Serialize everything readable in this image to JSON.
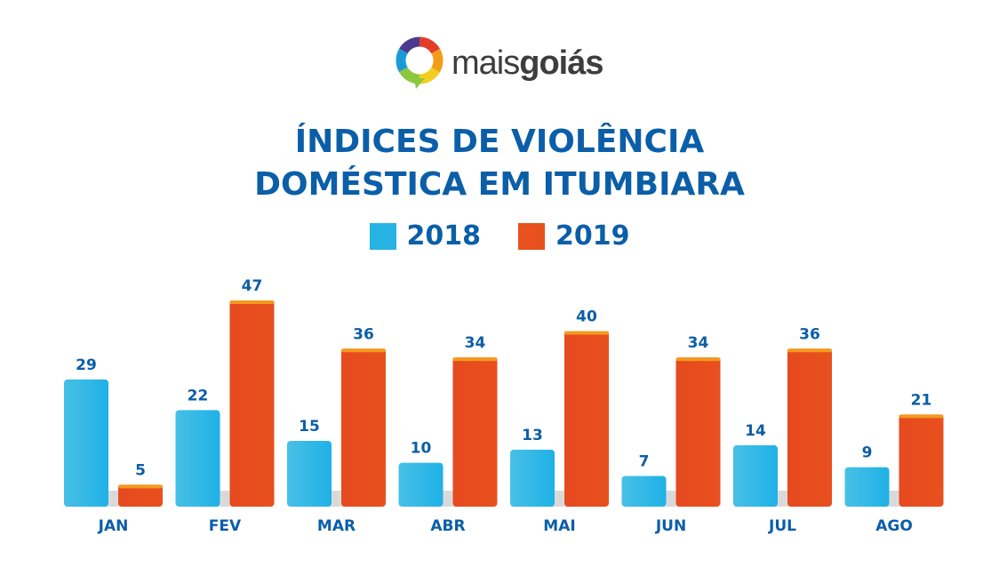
{
  "logo": {
    "text_light": "mais",
    "text_bold": "goiás"
  },
  "chart_data": {
    "type": "bar",
    "title": "ÍNDICES DE VIOLÊNCIA DOMÉSTICA EM ITUMBIARA",
    "title_lines": [
      "ÍNDICES DE VIOLÊNCIA",
      "DOMÉSTICA EM ITUMBIARA"
    ],
    "categories": [
      "JAN",
      "FEV",
      "MAR",
      "ABR",
      "MAI",
      "JUN",
      "JUL",
      "AGO"
    ],
    "series": [
      {
        "name": "2018",
        "color": "#27b3e3",
        "values": [
          29,
          22,
          15,
          10,
          13,
          7,
          14,
          9
        ]
      },
      {
        "name": "2019",
        "color": "#e8501e",
        "values": [
          5,
          47,
          36,
          34,
          40,
          34,
          36,
          21
        ]
      }
    ],
    "legend": "top-center",
    "grid": false,
    "ylim": [
      0,
      47
    ]
  }
}
